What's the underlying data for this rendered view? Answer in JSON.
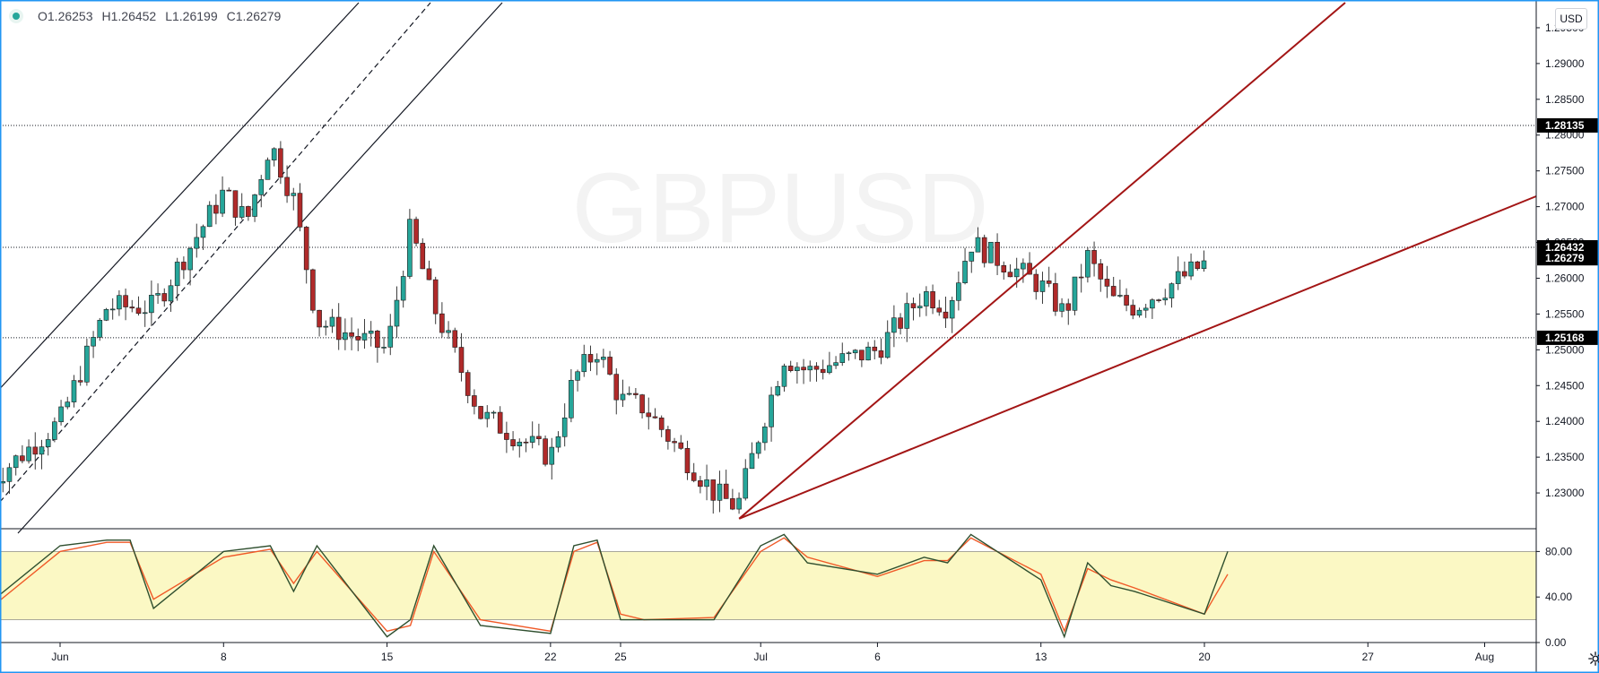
{
  "symbol": "GBPUSD",
  "ohlc": {
    "open": "O1.26253",
    "high": "H1.26452",
    "low": "L1.26199",
    "close": "C1.26279"
  },
  "currency_button": "USD",
  "colors": {
    "up": "#26a69a",
    "down": "#b02a2a",
    "trendline": "#a31515",
    "stoch_k": "#2f4f2f",
    "stoch_d": "#f05a28",
    "band_fill": "#fbf8c4",
    "frame": "#2196f3"
  },
  "icons": {
    "settings": "gear-icon"
  },
  "chart_data": [
    {
      "type": "candlestick",
      "symbol": "GBPUSD",
      "ylim": [
        1.225,
        1.2985
      ],
      "y_ticks": [
        "1.29500",
        "1.29000",
        "1.28500",
        "1.28000",
        "1.27500",
        "1.27000",
        "1.26500",
        "1.26000",
        "1.25500",
        "1.25000",
        "1.24500",
        "1.24000",
        "1.23500",
        "1.23000"
      ],
      "x_ticks": [
        "Jun",
        "8",
        "15",
        "22",
        "25",
        "Jul",
        "6",
        "13",
        "20",
        "27",
        "Aug"
      ],
      "price_labels": [
        "1.28135",
        "1.26432",
        "1.26279",
        "1.25168"
      ],
      "horizontal_levels": [
        1.28135,
        1.26432,
        1.25168
      ],
      "path_points": [
        [
          "May 29",
          1.2315
        ],
        [
          "Jun 1",
          1.24
        ],
        [
          "Jun 3",
          1.256
        ],
        [
          "Jun 5",
          1.256
        ],
        [
          "Jun 8",
          1.272
        ],
        [
          "Jun 9",
          1.268
        ],
        [
          "Jun 10",
          1.279
        ],
        [
          "Jun 11",
          1.271
        ],
        [
          "Jun 12",
          1.254
        ],
        [
          "Jun 15",
          1.25
        ],
        [
          "Jun 16",
          1.267
        ],
        [
          "Jun 17",
          1.256
        ],
        [
          "Jun 19",
          1.241
        ],
        [
          "Jun 22",
          1.235
        ],
        [
          "Jun 23",
          1.246
        ],
        [
          "Jun 24",
          1.25
        ],
        [
          "Jun 25",
          1.243
        ],
        [
          "Jun 26",
          1.242
        ],
        [
          "Jun 29",
          1.23
        ],
        [
          "Jun 30",
          1.228
        ],
        [
          "Jul 1",
          1.239
        ],
        [
          "Jul 2",
          1.249
        ],
        [
          "Jul 3",
          1.247
        ],
        [
          "Jul 6",
          1.25
        ],
        [
          "Jul 8",
          1.258
        ],
        [
          "Jul 9",
          1.256
        ],
        [
          "Jul 10",
          1.265
        ],
        [
          "Jul 13",
          1.259
        ],
        [
          "Jul 14",
          1.255
        ],
        [
          "Jul 15",
          1.263
        ],
        [
          "Jul 16",
          1.257
        ],
        [
          "Jul 17",
          1.256
        ],
        [
          "Jul 20",
          1.262
        ]
      ]
    },
    {
      "type": "line",
      "name": "Stochastic",
      "ylim": [
        0,
        100
      ],
      "y_ticks": [
        "80.00",
        "40.00",
        "0.00"
      ],
      "band": [
        20,
        80
      ],
      "k_points": [
        [
          "May 29",
          35
        ],
        [
          "Jun 1",
          85
        ],
        [
          "Jun 3",
          90
        ],
        [
          "Jun 4",
          90
        ],
        [
          "Jun 5",
          30
        ],
        [
          "Jun 8",
          80
        ],
        [
          "Jun 10",
          85
        ],
        [
          "Jun 11",
          45
        ],
        [
          "Jun 12",
          85
        ],
        [
          "Jun 15",
          5
        ],
        [
          "Jun 16",
          20
        ],
        [
          "Jun 17",
          85
        ],
        [
          "Jun 19",
          15
        ],
        [
          "Jun 22",
          8
        ],
        [
          "Jun 23",
          85
        ],
        [
          "Jun 24",
          90
        ],
        [
          "Jun 25",
          20
        ],
        [
          "Jun 26",
          20
        ],
        [
          "Jun 29",
          20
        ],
        [
          "Jul 1",
          85
        ],
        [
          "Jul 2",
          95
        ],
        [
          "Jul 3",
          70
        ],
        [
          "Jul 6",
          60
        ],
        [
          "Jul 8",
          75
        ],
        [
          "Jul 9",
          70
        ],
        [
          "Jul 10",
          95
        ],
        [
          "Jul 13",
          55
        ],
        [
          "Jul 14",
          5
        ],
        [
          "Jul 15",
          70
        ],
        [
          "Jul 16",
          50
        ],
        [
          "Jul 17",
          45
        ],
        [
          "Jul 20",
          25
        ],
        [
          "Jul 21",
          80
        ]
      ],
      "d_points": [
        [
          "May 29",
          30
        ],
        [
          "Jun 1",
          80
        ],
        [
          "Jun 3",
          88
        ],
        [
          "Jun 4",
          88
        ],
        [
          "Jun 5",
          38
        ],
        [
          "Jun 8",
          75
        ],
        [
          "Jun 10",
          82
        ],
        [
          "Jun 11",
          52
        ],
        [
          "Jun 12",
          80
        ],
        [
          "Jun 15",
          10
        ],
        [
          "Jun 16",
          15
        ],
        [
          "Jun 17",
          80
        ],
        [
          "Jun 19",
          20
        ],
        [
          "Jun 22",
          10
        ],
        [
          "Jun 23",
          80
        ],
        [
          "Jun 24",
          88
        ],
        [
          "Jun 25",
          25
        ],
        [
          "Jun 26",
          20
        ],
        [
          "Jun 29",
          22
        ],
        [
          "Jul 1",
          80
        ],
        [
          "Jul 2",
          92
        ],
        [
          "Jul 3",
          75
        ],
        [
          "Jul 6",
          58
        ],
        [
          "Jul 8",
          72
        ],
        [
          "Jul 9",
          72
        ],
        [
          "Jul 10",
          92
        ],
        [
          "Jul 13",
          60
        ],
        [
          "Jul 14",
          10
        ],
        [
          "Jul 15",
          65
        ],
        [
          "Jul 16",
          55
        ],
        [
          "Jul 17",
          48
        ],
        [
          "Jul 20",
          25
        ],
        [
          "Jul 21",
          60
        ]
      ]
    }
  ]
}
